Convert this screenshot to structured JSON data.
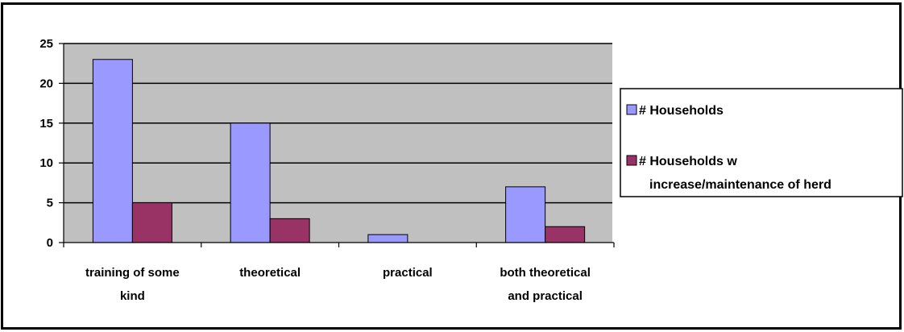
{
  "chart_data": {
    "type": "bar",
    "title": "",
    "xlabel": "",
    "ylabel": "",
    "categories": [
      [
        "training of some",
        "kind"
      ],
      [
        "theoretical"
      ],
      [
        "practical"
      ],
      [
        "both theoretical",
        "and practical"
      ]
    ],
    "series": [
      {
        "name": "# Households",
        "values": [
          23,
          15,
          1,
          7
        ],
        "color": "#9999ff"
      },
      {
        "name": "# Households w increase/maintenance of herd",
        "name_lines": [
          "# Households w",
          "increase/maintenance of herd"
        ],
        "values": [
          5,
          3,
          0,
          2
        ],
        "color": "#993366"
      }
    ],
    "ylim": [
      0,
      25
    ],
    "yticks": [
      0,
      5,
      10,
      15,
      20,
      25
    ],
    "grid": true,
    "plot_background": "#c0c0c0",
    "legend_position": "right"
  }
}
